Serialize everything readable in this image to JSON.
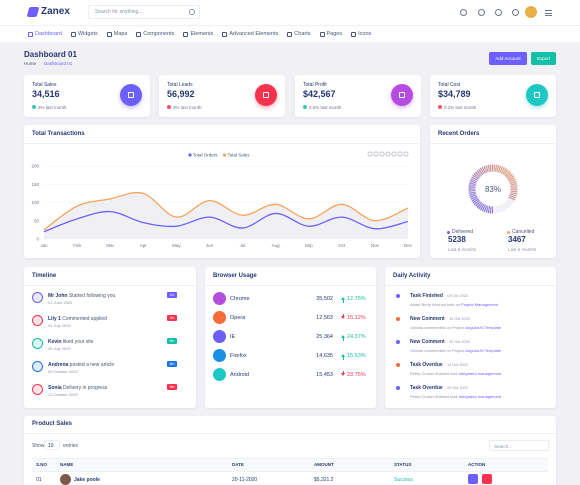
{
  "header": {
    "brand": "Zanex",
    "search": "Search for anything..."
  },
  "nav": [
    "Dashboard",
    "Widgets",
    "Maps",
    "Components",
    "Elements",
    "Advanced Elements",
    "Charts",
    "Pages",
    "Icons"
  ],
  "page": {
    "title": "Dashboard 01",
    "breadcrumb": [
      "Home",
      "Dashboard 01"
    ],
    "buttons": [
      "Add Account",
      "Export"
    ]
  },
  "stats": [
    {
      "label": "Total Sales",
      "value": "34,516",
      "change": "3% last month",
      "trend": "up",
      "color": "#6c5ffc"
    },
    {
      "label": "Total Leads",
      "value": "56,992",
      "change": "3% last month",
      "trend": "down",
      "color": "#f5334f"
    },
    {
      "label": "Total Profit",
      "value": "$42,567",
      "change": "0.5% last month",
      "trend": "up",
      "color": "#b44ce0"
    },
    {
      "label": "Total Cost",
      "value": "$34,789",
      "change": "0.2% last month",
      "trend": "down",
      "color": "#1fc7c4"
    }
  ],
  "chart_data": {
    "type": "line",
    "title": "Total Transactions",
    "categories": [
      "Jan",
      "Feb",
      "Mar",
      "Apr",
      "May",
      "Jun",
      "Jul",
      "Aug",
      "Sep",
      "Oct",
      "Nov",
      "Dec"
    ],
    "series": [
      {
        "name": "Total Orders",
        "color": "#6c5ffc",
        "values": [
          20,
          55,
          75,
          45,
          35,
          60,
          30,
          70,
          35,
          60,
          28,
          48
        ]
      },
      {
        "name": "Total Sales",
        "color": "#f7a35c",
        "values": [
          25,
          90,
          110,
          125,
          60,
          105,
          65,
          95,
          55,
          95,
          50,
          85
        ]
      }
    ],
    "ylim": [
      0,
      200
    ],
    "yticks": [
      0,
      50,
      100,
      150,
      200
    ],
    "grid": true,
    "legend": "top"
  },
  "recent_orders": {
    "title": "Recent Orders",
    "gauge": {
      "value": 83,
      "label": "83%"
    },
    "items": [
      {
        "label": "Delivered",
        "value": "5238",
        "note": "Last 6 months",
        "color": "#6c5ffc"
      },
      {
        "label": "Cancelled",
        "value": "3467",
        "note": "Last 6 months",
        "color": "#f7a35c"
      }
    ]
  },
  "timeline": {
    "title": "Timeline",
    "items": [
      {
        "name": "Mr John",
        "text": "Started following you",
        "date": "01 June 2020",
        "tag": "1m",
        "color": "#6c5ffc"
      },
      {
        "name": "Lily 1",
        "text": "Commented applied",
        "date": "01 July 2020",
        "tag": "3m",
        "color": "#f5334f"
      },
      {
        "name": "Kevin",
        "text": "liked your site",
        "date": "05 July 2020",
        "tag": "5m",
        "color": "#13bfa6"
      },
      {
        "name": "Andrena",
        "text": "posted a new article",
        "date": "09 October 2020",
        "tag": "8m",
        "color": "#1a73e8"
      },
      {
        "name": "Sonia",
        "text": "Delivery in progress",
        "date": "12 October 2020",
        "tag": "9m",
        "color": "#f5334f"
      }
    ]
  },
  "browser": {
    "title": "Browser Usage",
    "items": [
      {
        "name": "Chrome",
        "count": "35,502",
        "pct": "12.75%",
        "trend": "up",
        "color": "#b44ce0"
      },
      {
        "name": "Opera",
        "count": "12,563",
        "pct": "15.12%",
        "trend": "down",
        "color": "#f76b39"
      },
      {
        "name": "IE",
        "count": "25,364",
        "pct": "24.37%",
        "trend": "up",
        "color": "#6c5ffc"
      },
      {
        "name": "Firefox",
        "count": "14,635",
        "pct": "15.63%",
        "trend": "up",
        "color": "#1a8fe8"
      },
      {
        "name": "Android",
        "count": "15,453",
        "pct": "23.75%",
        "trend": "down",
        "color": "#1fc7c4"
      }
    ]
  },
  "activity": {
    "title": "Daily Activity",
    "items": [
      {
        "title": "Task Finished",
        "date": "09 Oct 2020",
        "text": "Adam Berry finished task on",
        "link": "Project Management",
        "color": "#6c5ffc"
      },
      {
        "title": "New Comment",
        "date": "15 Oct 2020",
        "text": "Victoria commented on Project",
        "link": "AngularJS Template",
        "color": "#f76b39"
      },
      {
        "title": "New Comment",
        "date": "25 Oct 2020",
        "text": "Victoria commented on Project",
        "link": "AngularJS Template",
        "color": "#6c5ffc"
      },
      {
        "title": "Task Overdue",
        "date": "14 Oct 2020",
        "text": "Petey Cruiser finished task",
        "link": "Integrated management",
        "color": "#f76b39"
      },
      {
        "title": "Task Overdue",
        "date": "29 Oct 2020",
        "text": "Petey Cruiser finished task",
        "link": "Integrated management",
        "color": "#6c5ffc"
      }
    ]
  },
  "product_sales": {
    "title": "Product Sales",
    "show": "Show",
    "entries": "10",
    "entries_label": "entries",
    "search": "Search...",
    "columns": [
      "S.NO",
      "NAME",
      "DATE",
      "AMOUNT",
      "STATUS",
      "ACTION"
    ],
    "rows": [
      [
        "01",
        "Jake poole",
        "20-11-2020",
        "$5,321.2",
        "Success"
      ]
    ]
  }
}
